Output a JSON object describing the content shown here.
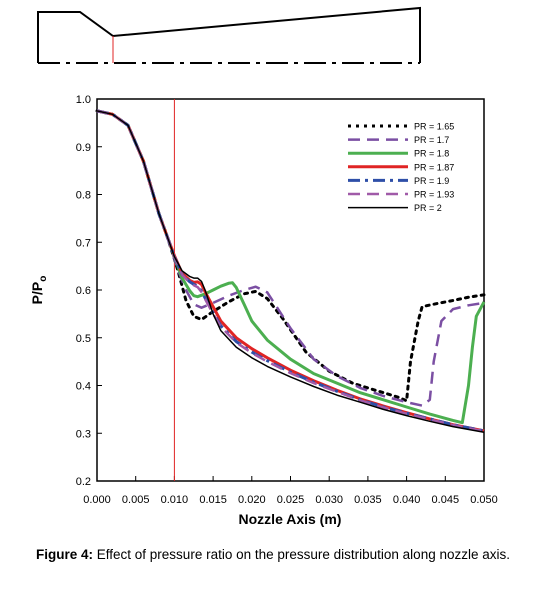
{
  "figure": {
    "caption_label": "Figure 4:",
    "caption_text": " Effect of pressure ratio on the pressure distribution along nozzle axis."
  },
  "chart_data": {
    "type": "line",
    "xlabel": "Nozzle Axis (m)",
    "ylabel": "P/P",
    "ylabel_subscript": "o",
    "xlim": [
      0,
      0.05
    ],
    "ylim": [
      0.2,
      1.0
    ],
    "x_ticks": [
      "0.000",
      "0.005",
      "0.010",
      "0.015",
      "0.020",
      "0.025",
      "0.030",
      "0.035",
      "0.040",
      "0.045",
      "0.050"
    ],
    "y_ticks": [
      "0.2",
      "0.3",
      "0.4",
      "0.5",
      "0.6",
      "0.7",
      "0.8",
      "0.9",
      "1.0"
    ],
    "grid": false,
    "legend_position": "top-right",
    "throat_x": 0.01,
    "series": [
      {
        "name": "PR = 1.65",
        "color": "#000000",
        "dash": "dot",
        "x": [
          0,
          0.002,
          0.004,
          0.006,
          0.008,
          0.009,
          0.01,
          0.0105,
          0.0115,
          0.0125,
          0.0135,
          0.015,
          0.017,
          0.019,
          0.0205,
          0.022,
          0.024,
          0.027,
          0.03,
          0.033,
          0.036,
          0.039,
          0.04,
          0.0405,
          0.0415,
          0.042,
          0.044,
          0.046,
          0.048,
          0.05
        ],
        "y": [
          0.975,
          0.968,
          0.945,
          0.87,
          0.76,
          0.715,
          0.665,
          0.638,
          0.578,
          0.545,
          0.538,
          0.555,
          0.575,
          0.592,
          0.597,
          0.582,
          0.54,
          0.47,
          0.43,
          0.405,
          0.39,
          0.375,
          0.368,
          0.45,
          0.535,
          0.565,
          0.572,
          0.578,
          0.585,
          0.59
        ]
      },
      {
        "name": "PR = 1.7",
        "color": "#7b4fa3",
        "dash": "dash",
        "x": [
          0,
          0.002,
          0.004,
          0.006,
          0.008,
          0.009,
          0.01,
          0.0105,
          0.0115,
          0.0125,
          0.0135,
          0.015,
          0.017,
          0.019,
          0.0205,
          0.022,
          0.025,
          0.028,
          0.031,
          0.034,
          0.037,
          0.04,
          0.042,
          0.043,
          0.0435,
          0.0445,
          0.046,
          0.048,
          0.05
        ],
        "y": [
          0.975,
          0.968,
          0.945,
          0.87,
          0.76,
          0.715,
          0.665,
          0.64,
          0.6,
          0.57,
          0.563,
          0.573,
          0.588,
          0.6,
          0.607,
          0.595,
          0.52,
          0.455,
          0.42,
          0.395,
          0.378,
          0.365,
          0.358,
          0.37,
          0.45,
          0.535,
          0.56,
          0.568,
          0.573
        ]
      },
      {
        "name": "PR = 1.8",
        "color": "#4caf50",
        "dash": "solid",
        "x": [
          0,
          0.002,
          0.004,
          0.006,
          0.008,
          0.009,
          0.01,
          0.011,
          0.012,
          0.0125,
          0.013,
          0.014,
          0.015,
          0.016,
          0.017,
          0.0175,
          0.018,
          0.019,
          0.02,
          0.022,
          0.025,
          0.028,
          0.031,
          0.034,
          0.037,
          0.04,
          0.043,
          0.046,
          0.0472,
          0.048,
          0.0485,
          0.049,
          0.05
        ],
        "y": [
          0.975,
          0.968,
          0.945,
          0.87,
          0.76,
          0.715,
          0.67,
          0.625,
          0.598,
          0.588,
          0.586,
          0.592,
          0.6,
          0.608,
          0.614,
          0.615,
          0.605,
          0.57,
          0.535,
          0.495,
          0.455,
          0.425,
          0.405,
          0.385,
          0.37,
          0.355,
          0.34,
          0.327,
          0.322,
          0.4,
          0.48,
          0.545,
          0.575
        ]
      },
      {
        "name": "PR = 1.87",
        "color": "#e02424",
        "dash": "solid",
        "x": [
          0,
          0.002,
          0.004,
          0.006,
          0.008,
          0.009,
          0.01,
          0.011,
          0.012,
          0.0125,
          0.013,
          0.0135,
          0.014,
          0.015,
          0.016,
          0.018,
          0.02,
          0.022,
          0.025,
          0.028,
          0.031,
          0.034,
          0.037,
          0.04,
          0.043,
          0.046,
          0.05
        ],
        "y": [
          0.975,
          0.968,
          0.945,
          0.87,
          0.76,
          0.715,
          0.672,
          0.635,
          0.62,
          0.616,
          0.617,
          0.612,
          0.595,
          0.565,
          0.535,
          0.5,
          0.477,
          0.458,
          0.432,
          0.41,
          0.39,
          0.372,
          0.357,
          0.343,
          0.33,
          0.318,
          0.305
        ]
      },
      {
        "name": "PR = 1.9",
        "color": "#2e4fa8",
        "dash": "dashdot",
        "x": [
          0,
          0.002,
          0.004,
          0.006,
          0.008,
          0.009,
          0.01,
          0.011,
          0.012,
          0.0125,
          0.013,
          0.0135,
          0.014,
          0.015,
          0.016,
          0.018,
          0.02,
          0.022,
          0.025,
          0.028,
          0.031,
          0.034,
          0.037,
          0.04,
          0.043,
          0.046,
          0.05
        ],
        "y": [
          0.975,
          0.968,
          0.945,
          0.87,
          0.76,
          0.715,
          0.67,
          0.632,
          0.617,
          0.612,
          0.608,
          0.598,
          0.582,
          0.552,
          0.525,
          0.492,
          0.47,
          0.452,
          0.428,
          0.407,
          0.388,
          0.37,
          0.355,
          0.342,
          0.33,
          0.318,
          0.305
        ]
      },
      {
        "name": "PR = 1.93",
        "color": "#a05aa8",
        "dash": "dash",
        "x": [
          0,
          0.002,
          0.004,
          0.006,
          0.008,
          0.009,
          0.01,
          0.011,
          0.012,
          0.0125,
          0.013,
          0.0135,
          0.014,
          0.015,
          0.016,
          0.018,
          0.02,
          0.022,
          0.025,
          0.028,
          0.031,
          0.034,
          0.037,
          0.04,
          0.043,
          0.046,
          0.05
        ],
        "y": [
          0.975,
          0.968,
          0.945,
          0.87,
          0.76,
          0.715,
          0.67,
          0.632,
          0.615,
          0.61,
          0.606,
          0.596,
          0.58,
          0.55,
          0.523,
          0.49,
          0.468,
          0.45,
          0.426,
          0.405,
          0.387,
          0.369,
          0.354,
          0.341,
          0.329,
          0.317,
          0.304
        ]
      },
      {
        "name": "PR = 2",
        "color": "#000000",
        "dash": "thin",
        "x": [
          0,
          0.002,
          0.004,
          0.006,
          0.008,
          0.009,
          0.01,
          0.011,
          0.012,
          0.0125,
          0.013,
          0.0135,
          0.014,
          0.015,
          0.016,
          0.018,
          0.02,
          0.022,
          0.025,
          0.028,
          0.031,
          0.034,
          0.037,
          0.04,
          0.043,
          0.046,
          0.05
        ],
        "y": [
          0.975,
          0.968,
          0.945,
          0.87,
          0.76,
          0.715,
          0.67,
          0.64,
          0.628,
          0.625,
          0.625,
          0.618,
          0.598,
          0.55,
          0.515,
          0.48,
          0.458,
          0.44,
          0.418,
          0.398,
          0.38,
          0.365,
          0.35,
          0.337,
          0.325,
          0.314,
          0.302
        ]
      }
    ]
  }
}
